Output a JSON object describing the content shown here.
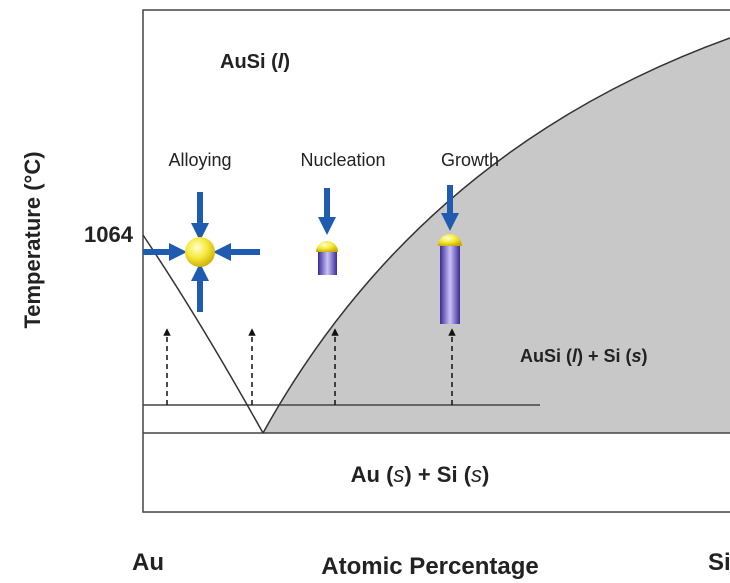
{
  "diagram": {
    "y_axis_label": "Temperature (°C)",
    "temperature_label": "1064",
    "x_axis_label": "Atomic Percentage",
    "x_left": "Au",
    "x_right": "Si",
    "regions": {
      "liquid": [
        "AuSi (",
        "l",
        ")"
      ],
      "liquid_solid": [
        "AuSi (",
        "l",
        ") + Si (",
        "s",
        ")"
      ],
      "solid": [
        "Au (",
        "s",
        ") + Si (",
        "s",
        ")"
      ]
    },
    "stages": [
      "Alloying",
      "Nucleation",
      "Growth"
    ]
  }
}
